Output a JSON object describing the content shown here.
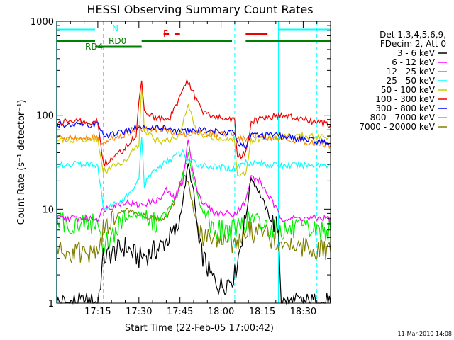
{
  "chart_data": {
    "type": "line",
    "title": "HESSI Observing Summary Count Rates",
    "xlabel": "Start Time (22-Feb-05 17:00:42)",
    "ylabel": "Count Rate (s⁻¹ detector⁻¹)",
    "y_scale": "log",
    "xlim": [
      "17:00",
      "18:40"
    ],
    "ylim": [
      1,
      1000
    ],
    "x_ticks": [
      "17:15",
      "17:30",
      "17:45",
      "18:00",
      "18:15",
      "18:30"
    ],
    "y_ticks": [
      {
        "value": 1,
        "label": "1"
      },
      {
        "value": 10,
        "label": "10"
      },
      {
        "value": 100,
        "label": "100"
      },
      {
        "value": 1000,
        "label": "1000"
      }
    ],
    "legend": {
      "position": "right",
      "header": [
        "Det 1,3,4,5,6,9,",
        "FDecim 2, Att 0"
      ],
      "entries": [
        {
          "label": "3 - 6 keV",
          "color": "#000000"
        },
        {
          "label": "6 - 12 keV",
          "color": "#ff00ff"
        },
        {
          "label": "12 - 25 keV",
          "color": "#00ee00"
        },
        {
          "label": "25 - 50 keV",
          "color": "#00ffff"
        },
        {
          "label": "50 - 100 keV",
          "color": "#cccc00"
        },
        {
          "label": "100 - 300 keV",
          "color": "#ee0000"
        },
        {
          "label": "300 - 800 keV",
          "color": "#0000ff"
        },
        {
          "label": "800 - 7000 keV",
          "color": "#ff8800"
        },
        {
          "label": "7000 - 20000 keV",
          "color": "#808000"
        }
      ]
    },
    "flag_labels": {
      "night": "N",
      "flare": "F",
      "rd0": "RD0",
      "rd4": "RD4"
    },
    "flag_colors": {
      "night": "#00ffff",
      "flare": "#ee0000",
      "rd": "#008000"
    },
    "flag_segments": {
      "night": [
        [
          "17:00",
          "17:14"
        ],
        [
          "18:21",
          "18:40"
        ]
      ],
      "flare": [
        [
          "17:39",
          "17:41"
        ],
        [
          "17:43",
          "17:45"
        ],
        [
          "18:09",
          "18:17"
        ]
      ],
      "rd0": [
        [
          "17:14",
          "17:31"
        ]
      ],
      "rd4": [
        [
          "17:00",
          "17:14"
        ],
        [
          "17:31",
          "18:04"
        ],
        [
          "18:09",
          "18:40"
        ]
      ]
    },
    "night_boundaries": {
      "dashed": [
        "17:17",
        "18:05",
        "18:35"
      ],
      "solid": [
        "17:00",
        "18:21"
      ]
    },
    "series": [
      {
        "name": "3 - 6 keV",
        "color": "#000000",
        "points": [
          [
            "17:00",
            1
          ],
          [
            "17:15",
            1
          ],
          [
            "17:17",
            3
          ],
          [
            "17:25",
            4
          ],
          [
            "17:30",
            3
          ],
          [
            "17:35",
            3.5
          ],
          [
            "17:38",
            4
          ],
          [
            "17:41",
            5
          ],
          [
            "17:44",
            6
          ],
          [
            "17:46",
            12
          ],
          [
            "17:48",
            30
          ],
          [
            "17:50",
            15
          ],
          [
            "17:52",
            4
          ],
          [
            "17:56",
            2
          ],
          [
            "18:00",
            1.5
          ],
          [
            "18:05",
            2
          ],
          [
            "18:09",
            8
          ],
          [
            "18:11",
            22
          ],
          [
            "18:14",
            15
          ],
          [
            "18:18",
            8
          ],
          [
            "18:21",
            6
          ],
          [
            "18:22",
            1
          ],
          [
            "18:40",
            1
          ]
        ]
      },
      {
        "name": "6 - 12 keV",
        "color": "#ff00ff",
        "points": [
          [
            "17:00",
            8
          ],
          [
            "17:15",
            8
          ],
          [
            "17:17",
            10
          ],
          [
            "17:25",
            12
          ],
          [
            "17:30",
            11
          ],
          [
            "17:35",
            12
          ],
          [
            "17:38",
            13
          ],
          [
            "17:40",
            16
          ],
          [
            "17:43",
            13
          ],
          [
            "17:46",
            20
          ],
          [
            "17:48",
            55
          ],
          [
            "17:50",
            22
          ],
          [
            "17:53",
            12
          ],
          [
            "17:58",
            9
          ],
          [
            "18:05",
            9
          ],
          [
            "18:09",
            12
          ],
          [
            "18:11",
            22
          ],
          [
            "18:14",
            20
          ],
          [
            "18:18",
            13
          ],
          [
            "18:22",
            8
          ],
          [
            "18:40",
            8
          ]
        ]
      },
      {
        "name": "12 - 25 keV",
        "color": "#00ee00",
        "points": [
          [
            "17:00",
            7
          ],
          [
            "17:15",
            7
          ],
          [
            "17:17",
            4
          ],
          [
            "17:25",
            8
          ],
          [
            "17:30",
            9
          ],
          [
            "17:35",
            7
          ],
          [
            "17:40",
            9
          ],
          [
            "17:44",
            14
          ],
          [
            "17:46",
            22
          ],
          [
            "17:48",
            38
          ],
          [
            "17:50",
            20
          ],
          [
            "17:53",
            10
          ],
          [
            "17:58",
            6
          ],
          [
            "18:05",
            6
          ],
          [
            "18:08",
            7
          ],
          [
            "18:11",
            8
          ],
          [
            "18:14",
            7
          ],
          [
            "18:22",
            6
          ],
          [
            "18:40",
            6
          ]
        ]
      },
      {
        "name": "25 - 50 keV",
        "color": "#00ffff",
        "points": [
          [
            "17:00",
            30
          ],
          [
            "17:15",
            30
          ],
          [
            "17:17",
            10
          ],
          [
            "17:25",
            13
          ],
          [
            "17:30",
            20
          ],
          [
            "17:31",
            60
          ],
          [
            "17:32",
            18
          ],
          [
            "17:35",
            25
          ],
          [
            "17:40",
            32
          ],
          [
            "17:44",
            38
          ],
          [
            "17:46",
            40
          ],
          [
            "17:48",
            33
          ],
          [
            "17:52",
            30
          ],
          [
            "17:58",
            28
          ],
          [
            "18:05",
            27
          ],
          [
            "18:09",
            32
          ],
          [
            "18:22",
            29
          ],
          [
            "18:40",
            30
          ]
        ]
      },
      {
        "name": "50 - 100 keV",
        "color": "#cccc00",
        "points": [
          [
            "17:00",
            55
          ],
          [
            "17:15",
            55
          ],
          [
            "17:17",
            25
          ],
          [
            "17:25",
            33
          ],
          [
            "17:30",
            50
          ],
          [
            "17:31",
            220
          ],
          [
            "17:32",
            70
          ],
          [
            "17:36",
            55
          ],
          [
            "17:40",
            52
          ],
          [
            "17:44",
            60
          ],
          [
            "17:46",
            80
          ],
          [
            "17:48",
            130
          ],
          [
            "17:50",
            80
          ],
          [
            "17:53",
            60
          ],
          [
            "18:00",
            57
          ],
          [
            "18:05",
            55
          ],
          [
            "18:06",
            22
          ],
          [
            "18:09",
            25
          ],
          [
            "18:11",
            55
          ],
          [
            "18:22",
            60
          ],
          [
            "18:40",
            60
          ]
        ]
      },
      {
        "name": "100 - 300 keV",
        "color": "#ee0000",
        "points": [
          [
            "17:00",
            85
          ],
          [
            "17:15",
            85
          ],
          [
            "17:17",
            30
          ],
          [
            "17:24",
            42
          ],
          [
            "17:29",
            60
          ],
          [
            "17:30",
            150
          ],
          [
            "17:31",
            250
          ],
          [
            "17:32",
            110
          ],
          [
            "17:36",
            95
          ],
          [
            "17:41",
            90
          ],
          [
            "17:44",
            130
          ],
          [
            "17:46",
            200
          ],
          [
            "17:48",
            230
          ],
          [
            "17:50",
            170
          ],
          [
            "17:53",
            110
          ],
          [
            "17:58",
            95
          ],
          [
            "18:05",
            90
          ],
          [
            "18:06",
            35
          ],
          [
            "18:09",
            40
          ],
          [
            "18:11",
            85
          ],
          [
            "18:16",
            95
          ],
          [
            "18:22",
            100
          ],
          [
            "18:30",
            90
          ],
          [
            "18:40",
            78
          ]
        ]
      },
      {
        "name": "300 - 800 keV",
        "color": "#0000ff",
        "points": [
          [
            "17:00",
            80
          ],
          [
            "17:15",
            80
          ],
          [
            "17:17",
            60
          ],
          [
            "17:25",
            68
          ],
          [
            "17:30",
            76
          ],
          [
            "17:40",
            72
          ],
          [
            "17:46",
            66
          ],
          [
            "17:52",
            70
          ],
          [
            "17:58",
            68
          ],
          [
            "18:05",
            65
          ],
          [
            "18:06",
            50
          ],
          [
            "18:09",
            48
          ],
          [
            "18:11",
            62
          ],
          [
            "18:22",
            60
          ],
          [
            "18:40",
            50
          ]
        ]
      },
      {
        "name": "800 - 7000 keV",
        "color": "#ff8800",
        "points": [
          [
            "17:00",
            58
          ],
          [
            "17:15",
            58
          ],
          [
            "17:17",
            52
          ],
          [
            "17:25",
            62
          ],
          [
            "17:30",
            72
          ],
          [
            "17:40",
            70
          ],
          [
            "17:46",
            62
          ],
          [
            "17:52",
            65
          ],
          [
            "17:58",
            63
          ],
          [
            "18:05",
            62
          ],
          [
            "18:06",
            55
          ],
          [
            "18:09",
            56
          ],
          [
            "18:11",
            60
          ],
          [
            "18:22",
            57
          ],
          [
            "18:40",
            48
          ]
        ]
      },
      {
        "name": "7000 - 20000 keV",
        "color": "#808000",
        "points": [
          [
            "17:00",
            3.5
          ],
          [
            "17:15",
            3.5
          ],
          [
            "17:17",
            6
          ],
          [
            "17:25",
            10
          ],
          [
            "17:30",
            9
          ],
          [
            "17:35",
            8
          ],
          [
            "17:40",
            8
          ],
          [
            "17:44",
            14
          ],
          [
            "17:46",
            25
          ],
          [
            "17:48",
            20
          ],
          [
            "17:50",
            10
          ],
          [
            "17:53",
            5
          ],
          [
            "17:58",
            4.5
          ],
          [
            "18:05",
            4.5
          ],
          [
            "18:08",
            5
          ],
          [
            "18:11",
            6
          ],
          [
            "18:22",
            4.5
          ],
          [
            "18:40",
            3.5
          ]
        ]
      }
    ]
  },
  "footer": {
    "timestamp": "11-Mar-2010 14:08"
  }
}
